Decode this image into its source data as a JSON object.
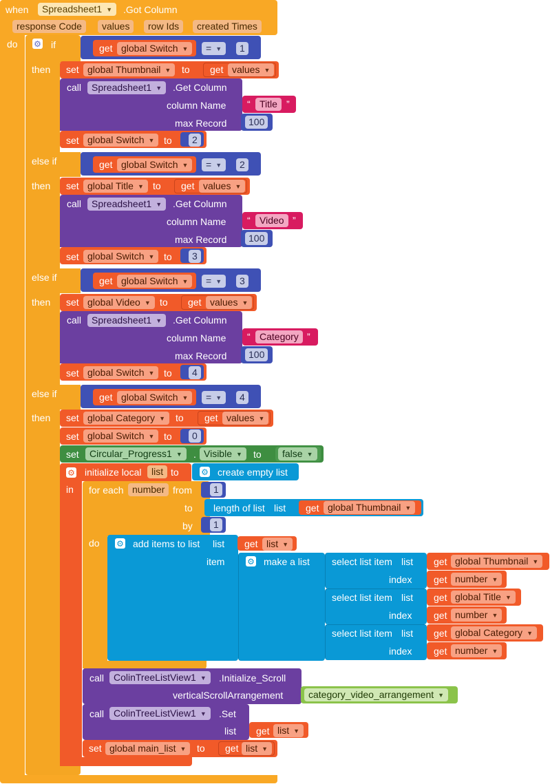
{
  "event": {
    "when": "when",
    "component": "Spreadsheet1",
    "event_name": ".Got Column",
    "params": [
      "response Code",
      "values",
      "row Ids",
      "created Times"
    ],
    "do": "do"
  },
  "kw": {
    "if": "if",
    "then": "then",
    "else_if": "else if",
    "get": "get",
    "set": "set",
    "call": "call",
    "to": "to",
    "eq": "=",
    "get_column": ".Get Column",
    "column_name": "column Name",
    "max_record": "max Record",
    "in": "in",
    "do": "do",
    "from": "from",
    "by": "by",
    "for_each": "for each",
    "initialize_local": "initialize local",
    "create_empty_list": "create empty list",
    "length_of_list": "length of list",
    "list": "list",
    "add_items": "add items to list",
    "item": "item",
    "make_a_list": "make a list",
    "select_list_item": "select list item",
    "index": "index",
    "visible": "Visible",
    "initialize_scroll": ".Initialize_Scroll",
    "vertical_scroll": "verticalScrollArrangement",
    "set_method": ".Set"
  },
  "vars": {
    "switch": "global Switch",
    "thumbnail": "global Thumbnail",
    "title": "global Title",
    "video": "global Video",
    "category": "global Category",
    "main_list": "global main_list",
    "values": "values",
    "list": "list",
    "number": "number"
  },
  "components": {
    "spreadsheet": "Spreadsheet1",
    "progress": "Circular_Progress1",
    "tree": "ColinTreeListView1",
    "arrangement": "category_video_arrangement"
  },
  "strings": {
    "title": "Title",
    "video": "Video",
    "category": "Category"
  },
  "numbers": {
    "one": "1",
    "two": "2",
    "three": "3",
    "four": "4",
    "zero": "0",
    "hundred": "100"
  },
  "booleans": {
    "false": "false"
  },
  "colors": {
    "event": "#f9a825",
    "control": "#f5a623",
    "variable": "#f15a29",
    "math": "#3f51b5",
    "procedure": "#6b3fa0",
    "text": "#d81b60",
    "list": "#0a99d6",
    "component_set": "#3e8e41",
    "component_green": "#8bc34a"
  }
}
